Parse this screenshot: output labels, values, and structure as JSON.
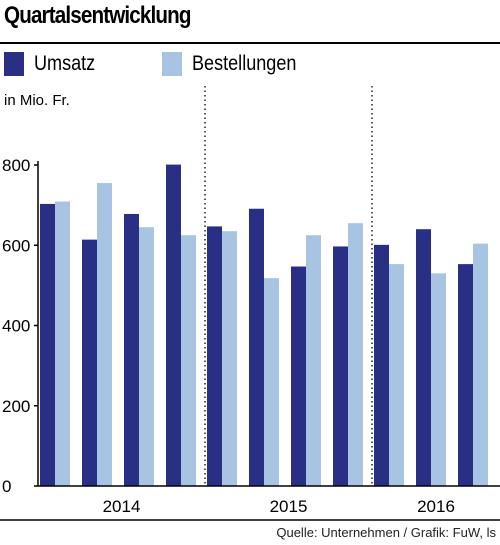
{
  "title": "Quartalsentwicklung",
  "source": "Quelle: Unternehmen / Grafik: FuW, ls",
  "colors": {
    "umsatz": "#2a2f86",
    "bestellungen": "#a7c4e3",
    "axis": "#000000"
  },
  "chart_data": {
    "type": "bar",
    "unit_label": "in Mio. Fr.",
    "ylim": [
      0,
      800
    ],
    "yticks": [
      0,
      200,
      400,
      600,
      800
    ],
    "groups": [
      {
        "label": "2014",
        "quarters": 4
      },
      {
        "label": "2015",
        "quarters": 4
      },
      {
        "label": "2016",
        "quarters": 3
      }
    ],
    "categories": [
      "2014 Q1",
      "2014 Q2",
      "2014 Q3",
      "2014 Q4",
      "2015 Q1",
      "2015 Q2",
      "2015 Q3",
      "2015 Q4",
      "2016 Q1",
      "2016 Q2",
      "2016 Q3"
    ],
    "series": [
      {
        "name": "Umsatz",
        "color": "#2a2f86",
        "values": [
          703,
          614,
          678,
          801,
          647,
          691,
          547,
          597,
          601,
          640,
          553
        ]
      },
      {
        "name": "Bestellungen",
        "color": "#a7c4e3",
        "values": [
          709,
          755,
          645,
          625,
          635,
          518,
          625,
          655,
          553,
          530,
          604
        ]
      }
    ],
    "grid": false,
    "legend_position": "top-left"
  }
}
